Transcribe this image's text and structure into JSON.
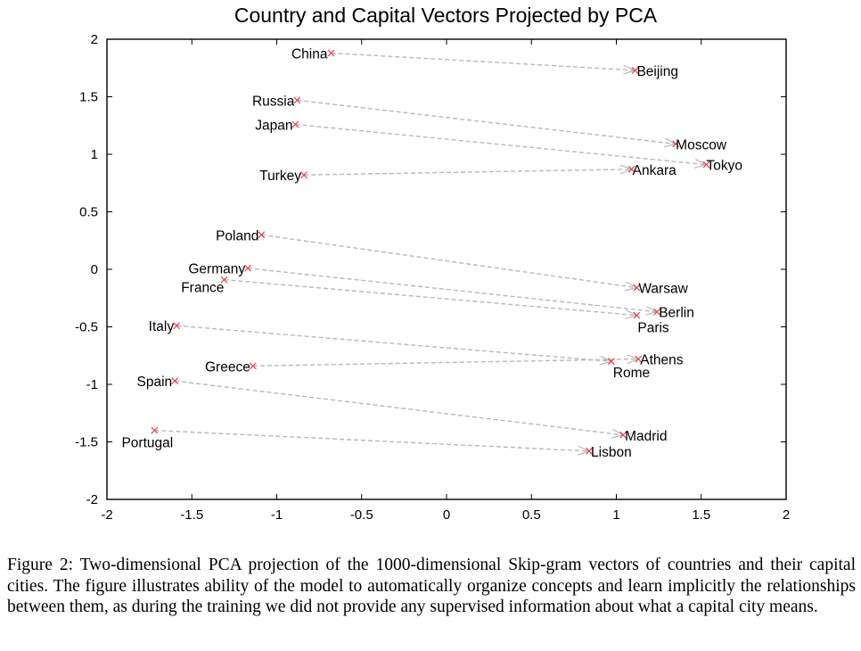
{
  "chart_data": {
    "type": "scatter",
    "title": "Country and Capital Vectors Projected by PCA",
    "xlabel": "",
    "ylabel": "",
    "xlim": [
      -2,
      2
    ],
    "ylim": [
      -2,
      2
    ],
    "xticks": [
      -2,
      -1.5,
      -1,
      -0.5,
      0,
      0.5,
      1,
      1.5,
      2
    ],
    "yticks": [
      -2,
      -1.5,
      -1,
      -0.5,
      0,
      0.5,
      1,
      1.5,
      2
    ],
    "grid": false,
    "marker": "x",
    "marker_color": "#e8323a",
    "arrow_color": "#b8b8b8",
    "pairs": [
      {
        "country": "China",
        "cx": -0.68,
        "cy": 1.88,
        "capital": "Beijing",
        "kx": 1.11,
        "ky": 1.73
      },
      {
        "country": "Russia",
        "cx": -0.88,
        "cy": 1.47,
        "capital": "Moscow",
        "kx": 1.35,
        "ky": 1.09
      },
      {
        "country": "Japan",
        "cx": -0.89,
        "cy": 1.26,
        "capital": "Tokyo",
        "kx": 1.53,
        "ky": 0.91
      },
      {
        "country": "Turkey",
        "cx": -0.84,
        "cy": 0.82,
        "capital": "Ankara",
        "kx": 1.09,
        "ky": 0.87
      },
      {
        "country": "Poland",
        "cx": -1.09,
        "cy": 0.3,
        "capital": "Warsaw",
        "kx": 1.12,
        "ky": -0.16
      },
      {
        "country": "Germany",
        "cx": -1.17,
        "cy": 0.01,
        "capital": "Berlin",
        "kx": 1.24,
        "ky": -0.37
      },
      {
        "country": "France",
        "cx": -1.31,
        "cy": -0.09,
        "capital": "Paris",
        "kx": 1.12,
        "ky": -0.4
      },
      {
        "country": "Italy",
        "cx": -1.59,
        "cy": -0.49,
        "capital": "Rome",
        "kx": 0.97,
        "ky": -0.8
      },
      {
        "country": "Greece",
        "cx": -1.14,
        "cy": -0.84,
        "capital": "Athens",
        "kx": 1.13,
        "ky": -0.78
      },
      {
        "country": "Spain",
        "cx": -1.6,
        "cy": -0.97,
        "capital": "Madrid",
        "kx": 1.04,
        "ky": -1.44
      },
      {
        "country": "Portugal",
        "cx": -1.72,
        "cy": -1.4,
        "capital": "Lisbon",
        "kx": 0.84,
        "ky": -1.58
      }
    ]
  },
  "caption": {
    "label": "Figure 2:",
    "text": "Two-dimensional PCA projection of the 1000-dimensional Skip-gram vectors of countries and their capital cities. The figure illustrates ability of the model to automatically organize concepts and learn implicitly the relationships between them, as during the training we did not provide any supervised information about what a capital city means."
  }
}
